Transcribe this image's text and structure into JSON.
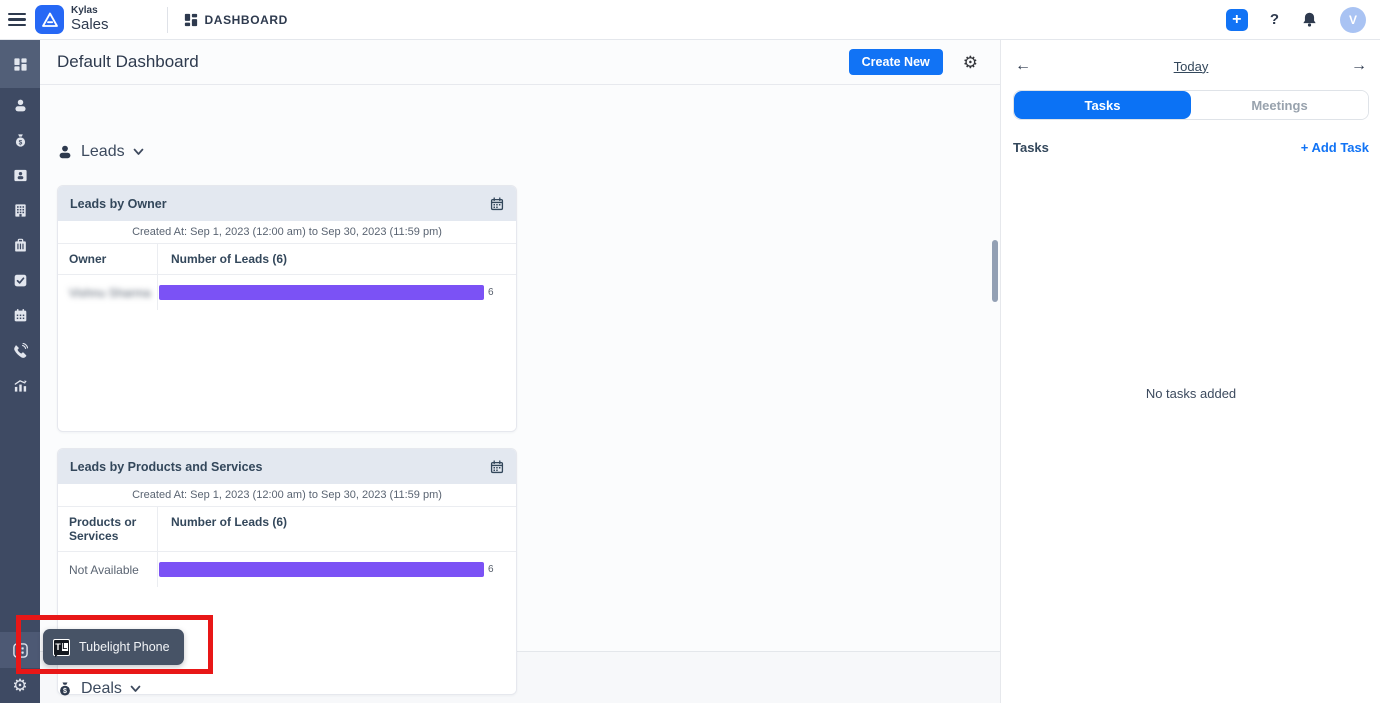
{
  "topbar": {
    "brand_top": "Kylas",
    "brand_bottom": "Sales",
    "nav_dashboard": "DASHBOARD",
    "plus_label": "+",
    "help_label": "?",
    "avatar_initial": "V"
  },
  "sidebar": {
    "items": [
      {
        "icon": "dashboard-grid-icon",
        "active": true
      },
      {
        "icon": "leads-person-icon",
        "active": false
      },
      {
        "icon": "deals-moneybag-icon",
        "active": false
      },
      {
        "icon": "contacts-card-icon",
        "active": false
      },
      {
        "icon": "companies-building-icon",
        "active": false
      },
      {
        "icon": "products-briefcase-icon",
        "active": false
      },
      {
        "icon": "tasks-checkbox-icon",
        "active": false
      },
      {
        "icon": "meetings-calendar-icon",
        "active": false
      },
      {
        "icon": "calls-phone-icon",
        "active": false
      },
      {
        "icon": "reports-chart-icon",
        "active": false
      }
    ],
    "bottom_items": [
      {
        "icon": "marketplace-apps-icon",
        "hovered": true
      },
      {
        "icon": "settings-gear-icon",
        "hovered": false
      }
    ]
  },
  "main": {
    "title": "Default Dashboard",
    "create_button": "Create New",
    "leads_section_label": "Leads",
    "deals_section_label": "Deals",
    "cards": [
      {
        "title": "Leads by Owner",
        "date_range": "Created At: Sep 1, 2023 (12:00 am) to Sep 30, 2023 (11:59 pm)",
        "col1": "Owner",
        "col2": "Number of Leads (6)",
        "max_value": 6,
        "bar_color": "#7b52f5",
        "rows": [
          {
            "label": "Vishnu Sharma",
            "value": 6,
            "blurred": true
          }
        ]
      },
      {
        "title": "Leads by Products and Services",
        "date_range": "Created At: Sep 1, 2023 (12:00 am) to Sep 30, 2023 (11:59 pm)",
        "col1": "Products or Services",
        "col2": "Number of Leads (6)",
        "max_value": 6,
        "bar_color": "#7b52f5",
        "rows": [
          {
            "label": "Not Available",
            "value": 6,
            "blurred": false
          }
        ]
      }
    ]
  },
  "right_panel": {
    "prev_arrow": "←",
    "today_label": "Today",
    "next_arrow": "→",
    "tabs": {
      "tasks": "Tasks",
      "meetings": "Meetings",
      "active": "Tasks"
    },
    "tasks_header": "Tasks",
    "add_task_label": "+ Add Task",
    "empty_state": "No tasks added"
  },
  "tooltip": {
    "logo_text_t": "T",
    "logo_text_l": "L",
    "label": "Tubelight Phone"
  },
  "annotation": {
    "type": "red-box-highlight-around-marketplace-icon"
  },
  "colors": {
    "accent_blue": "#1173f5",
    "bar_purple": "#7b52f5",
    "sidebar_bg": "#3e4a63",
    "card_header_bg": "#e3e8f0",
    "annotation_red": "#e81717"
  }
}
